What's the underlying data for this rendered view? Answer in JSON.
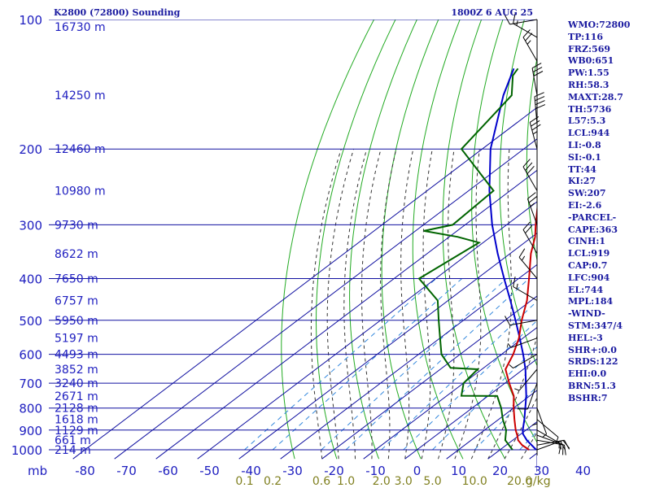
{
  "header": {
    "station": "K2800 (72800) Sounding",
    "datetime": "1800Z  6 AUG 25"
  },
  "indices": [
    "WMO:72800",
    "TP:116",
    "FRZ:569",
    "WB0:651",
    "PW:1.55",
    "RH:58.3",
    "MAXT:28.7",
    "TH:5736",
    "L57:5.3",
    "LCL:944",
    "LI:-0.8",
    "SI:-0.1",
    "TT:44",
    "KI:27",
    "SW:207",
    "EI:-2.6",
    "-PARCEL-",
    "CAPE:363",
    "CINH:1",
    "LCL:919",
    "CAP:0.7",
    "LFC:904",
    "EL:744",
    "MPL:184",
    "-WIND-",
    "STM:347/4",
    "HEL:-3",
    "SHR+:0.0",
    "SRDS:122",
    "EHI:0.0",
    "BRN:51.3",
    "BSHR:7"
  ],
  "colors": {
    "grid": "#1010a0",
    "dry_adiabat": "#22aa22",
    "moist_adiabat": "#333333",
    "mixing_ratio": "#3388dd",
    "temperature": "#cc0000",
    "dewpoint": "#006400",
    "parcel": "#0000cc",
    "wind": "#000000"
  },
  "chart_data": {
    "type": "line",
    "subtype": "skew-t log-p",
    "p_unit_label": "mb",
    "mixing_ratio_unit_label": "g/kg",
    "pressure_levels": [
      100,
      200,
      300,
      400,
      500,
      600,
      700,
      800,
      900,
      1000
    ],
    "pressure_labels": [
      "100",
      "200",
      "300",
      "400",
      "500",
      "600",
      "700",
      "800",
      "900",
      "1000"
    ],
    "isotherms": [
      -80,
      -70,
      -60,
      -50,
      -40,
      -30,
      -20,
      -10,
      0,
      10,
      20,
      30,
      40
    ],
    "temp_labels": [
      "-80",
      "-70",
      "-60",
      "-50",
      "-40",
      "-30",
      "-20",
      "-10",
      "0",
      "10",
      "20",
      "30",
      "40"
    ],
    "mixing_ratio_labels": [
      {
        "w": 0.1,
        "label": "0.1"
      },
      {
        "w": 0.2,
        "label": "0.2"
      },
      {
        "w": 0.6,
        "label": "0.6"
      },
      {
        "w": 1.0,
        "label": "1.0"
      },
      {
        "w": 2.0,
        "label": "2.0"
      },
      {
        "w": 3.0,
        "label": "3.0"
      },
      {
        "w": 5.0,
        "label": "5.0"
      },
      {
        "w": 10.0,
        "label": "10.0"
      },
      {
        "w": 20.0,
        "label": "20.0"
      }
    ],
    "heights": [
      {
        "p": 104,
        "label": "16730 m"
      },
      {
        "p": 150,
        "label": "14250 m"
      },
      {
        "p": 200,
        "label": "12460 m"
      },
      {
        "p": 250,
        "label": "10980 m"
      },
      {
        "p": 300,
        "label": "9730 m"
      },
      {
        "p": 350,
        "label": "8622 m"
      },
      {
        "p": 400,
        "label": "7650 m"
      },
      {
        "p": 450,
        "label": "6757 m"
      },
      {
        "p": 500,
        "label": "5950 m"
      },
      {
        "p": 550,
        "label": "5197 m"
      },
      {
        "p": 600,
        "label": "4493 m"
      },
      {
        "p": 650,
        "label": "3852 m"
      },
      {
        "p": 700,
        "label": "3240 m"
      },
      {
        "p": 750,
        "label": "2671 m"
      },
      {
        "p": 800,
        "label": "2128 m"
      },
      {
        "p": 850,
        "label": "1618 m"
      },
      {
        "p": 900,
        "label": "1129 m"
      },
      {
        "p": 950,
        "label": "661 m"
      },
      {
        "p": 1000,
        "label": "214 m"
      }
    ],
    "temperature": [
      {
        "p": 1000,
        "t": 27.0
      },
      {
        "p": 975,
        "t": 23.8
      },
      {
        "p": 950,
        "t": 21.3
      },
      {
        "p": 925,
        "t": 19.5
      },
      {
        "p": 900,
        "t": 17.5
      },
      {
        "p": 850,
        "t": 13.8
      },
      {
        "p": 800,
        "t": 10.0
      },
      {
        "p": 750,
        "t": 6.2
      },
      {
        "p": 700,
        "t": 1.0
      },
      {
        "p": 650,
        "t": -4.3
      },
      {
        "p": 600,
        "t": -7.2
      },
      {
        "p": 550,
        "t": -11.0
      },
      {
        "p": 500,
        "t": -16.0
      },
      {
        "p": 450,
        "t": -21.0
      },
      {
        "p": 400,
        "t": -27.5
      },
      {
        "p": 350,
        "t": -35.0
      },
      {
        "p": 320,
        "t": -39.3
      },
      {
        "p": 300,
        "t": -43.0
      },
      {
        "p": 250,
        "t": -53.0
      },
      {
        "p": 200,
        "t": -64.0
      },
      {
        "p": 150,
        "t": -75.5
      },
      {
        "p": 120,
        "t": -83.0
      },
      {
        "p": 110,
        "t": -85.5
      },
      {
        "p": 102,
        "t": -87.0
      }
    ],
    "dewpoint": [
      {
        "p": 1000,
        "td": 23.0
      },
      {
        "p": 950,
        "td": 18.2
      },
      {
        "p": 900,
        "td": 15.2
      },
      {
        "p": 850,
        "td": 11.0
      },
      {
        "p": 800,
        "td": 7.0
      },
      {
        "p": 750,
        "td": 2.2
      },
      {
        "p": 749,
        "td": -6.5
      },
      {
        "p": 700,
        "td": -10.0
      },
      {
        "p": 650,
        "td": -11.0
      },
      {
        "p": 645,
        "td": -18.0
      },
      {
        "p": 600,
        "td": -24.5
      },
      {
        "p": 550,
        "td": -30.0
      },
      {
        "p": 500,
        "td": -36.0
      },
      {
        "p": 450,
        "td": -42.5
      },
      {
        "p": 400,
        "td": -54.0
      },
      {
        "p": 330,
        "td": -51.0
      },
      {
        "p": 320,
        "td": -58.0
      },
      {
        "p": 310,
        "td": -68.0
      },
      {
        "p": 300,
        "td": -63.0
      },
      {
        "p": 250,
        "td": -64.0
      },
      {
        "p": 200,
        "td": -85.0
      },
      {
        "p": 150,
        "td": -90.0
      },
      {
        "p": 135,
        "td": -96.0
      },
      {
        "p": 130,
        "td": -97.0
      }
    ],
    "parcel": [
      {
        "p": 1000,
        "t": 28.7
      },
      {
        "p": 950,
        "t": 23.4
      },
      {
        "p": 919,
        "t": 20.5
      },
      {
        "p": 900,
        "t": 19.2
      },
      {
        "p": 850,
        "t": 16.2
      },
      {
        "p": 800,
        "t": 12.8
      },
      {
        "p": 750,
        "t": 9.2
      },
      {
        "p": 700,
        "t": 5.0
      },
      {
        "p": 650,
        "t": 0.5
      },
      {
        "p": 600,
        "t": -4.8
      },
      {
        "p": 550,
        "t": -10.8
      },
      {
        "p": 500,
        "t": -17.5
      },
      {
        "p": 450,
        "t": -25.0
      },
      {
        "p": 400,
        "t": -33.5
      },
      {
        "p": 350,
        "t": -43.0
      },
      {
        "p": 300,
        "t": -53.5
      },
      {
        "p": 250,
        "t": -65.0
      },
      {
        "p": 200,
        "t": -78.0
      },
      {
        "p": 150,
        "t": -92.0
      },
      {
        "p": 130,
        "t": -98.0
      }
    ],
    "wind_barbs": [
      {
        "p": 1000,
        "dir": 70,
        "spd": 10
      },
      {
        "p": 975,
        "dir": 80,
        "spd": 20
      },
      {
        "p": 950,
        "dir": 100,
        "spd": 15
      },
      {
        "p": 925,
        "dir": 110,
        "spd": 15
      },
      {
        "p": 900,
        "dir": 120,
        "spd": 10
      },
      {
        "p": 850,
        "dir": 130,
        "spd": 5
      },
      {
        "p": 800,
        "dir": 160,
        "spd": 5
      },
      {
        "p": 750,
        "dir": 180,
        "spd": 5
      },
      {
        "p": 700,
        "dir": 200,
        "spd": 10
      },
      {
        "p": 650,
        "dir": 220,
        "spd": 5
      },
      {
        "p": 600,
        "dir": 240,
        "spd": 5
      },
      {
        "p": 550,
        "dir": 250,
        "spd": 5
      },
      {
        "p": 500,
        "dir": 260,
        "spd": 10
      },
      {
        "p": 450,
        "dir": 300,
        "spd": 15
      },
      {
        "p": 400,
        "dir": 320,
        "spd": 15
      },
      {
        "p": 350,
        "dir": 330,
        "spd": 20
      },
      {
        "p": 300,
        "dir": 340,
        "spd": 25
      },
      {
        "p": 250,
        "dir": 330,
        "spd": 30
      },
      {
        "p": 200,
        "dir": 345,
        "spd": 35
      },
      {
        "p": 175,
        "dir": 355,
        "spd": 40
      },
      {
        "p": 150,
        "dir": 350,
        "spd": 30
      },
      {
        "p": 125,
        "dir": 330,
        "spd": 25
      },
      {
        "p": 110,
        "dir": 300,
        "spd": 15
      },
      {
        "p": 100,
        "dir": 260,
        "spd": 10
      }
    ]
  }
}
